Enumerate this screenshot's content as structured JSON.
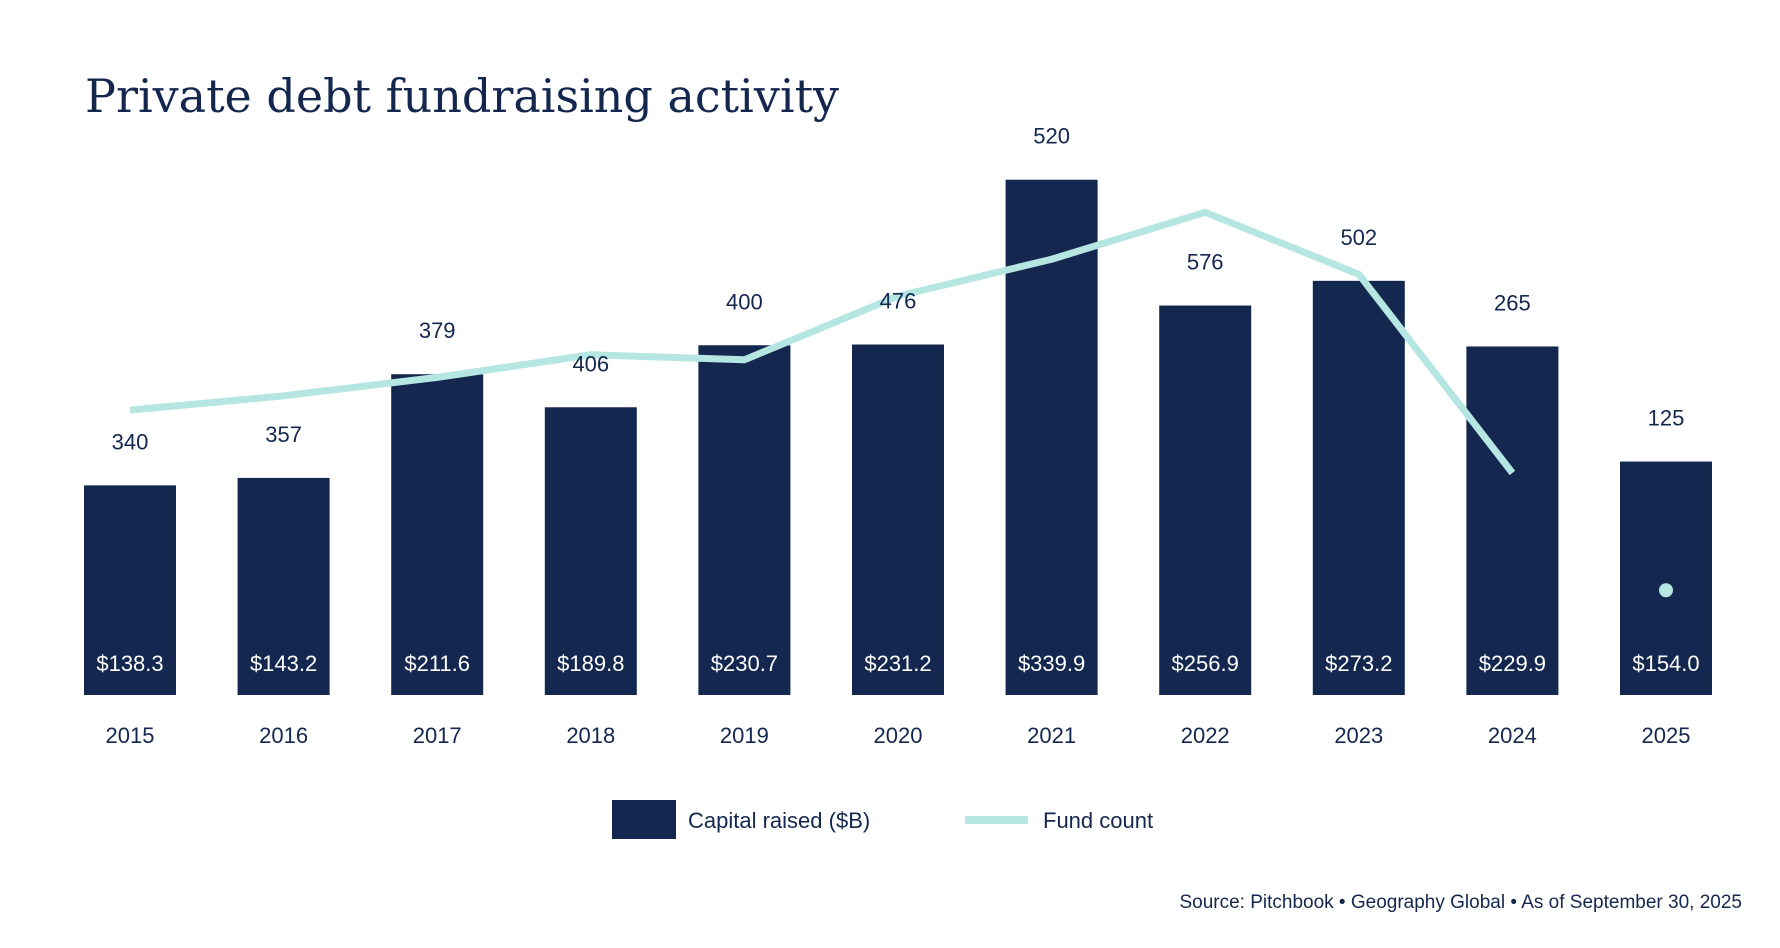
{
  "chart_data": {
    "type": "bar",
    "title": "Private debt fundraising activity",
    "categories": [
      "2015",
      "2016",
      "2017",
      "2018",
      "2019",
      "2020",
      "2021",
      "2022",
      "2023",
      "2024",
      "2025"
    ],
    "series": [
      {
        "name": "Capital raised ($B)",
        "type": "bar",
        "color": "#14274e",
        "values": [
          138.3,
          143.2,
          211.6,
          189.8,
          230.7,
          231.2,
          339.9,
          256.9,
          273.2,
          229.9,
          154.0
        ],
        "labels": [
          "$138.3",
          "$143.2",
          "$211.6",
          "$189.8",
          "$230.7",
          "$231.2",
          "$339.9",
          "$256.9",
          "$273.2",
          "$229.9",
          "$154.0"
        ]
      },
      {
        "name": "Fund count",
        "type": "line",
        "color": "#b5e6e2",
        "values": [
          340,
          357,
          379,
          406,
          400,
          476,
          520,
          576,
          502,
          265,
          125
        ],
        "labels": [
          "340",
          "357",
          "379",
          "406",
          "400",
          "476",
          "520",
          "576",
          "502",
          "265",
          "125"
        ]
      }
    ],
    "legend": "bottom-center",
    "grid": false,
    "source": "Source: Pitchbook • Geography Global • As of September 30, 2025"
  }
}
